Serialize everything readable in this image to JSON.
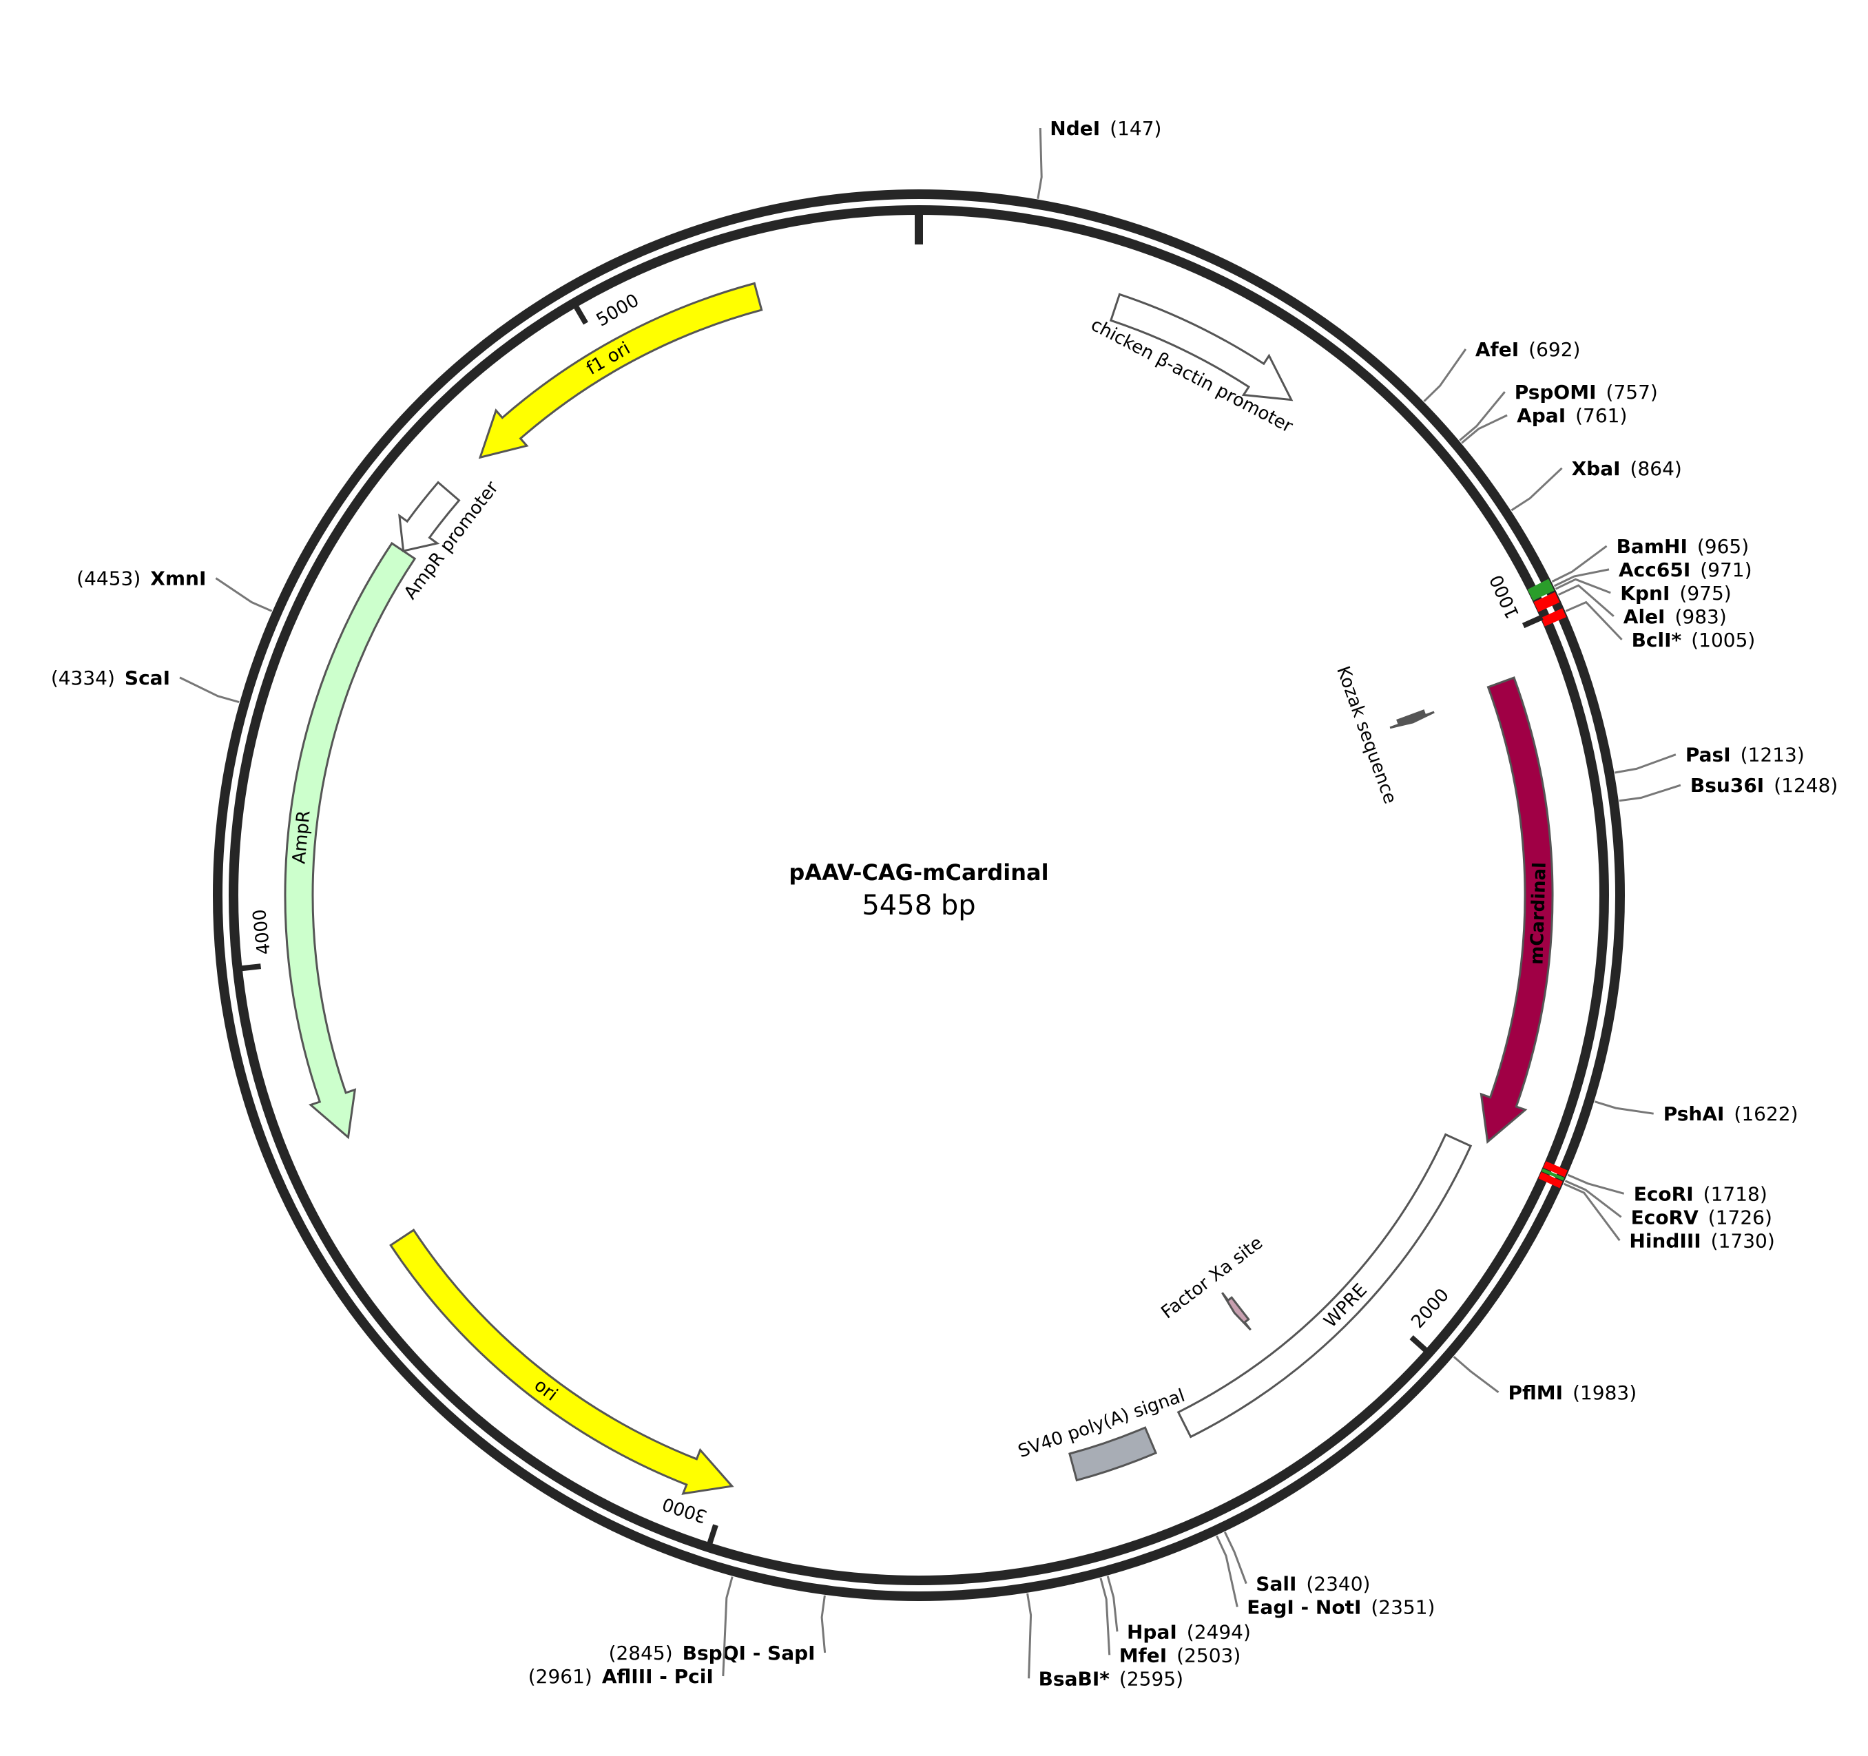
{
  "plasmid": {
    "name": "pAAV-CAG-mCardinal",
    "length_label": "5458 bp",
    "length": 5458
  },
  "backbone": {
    "color": "#262626",
    "ticks": [
      {
        "pos": 1000,
        "label": "1000"
      },
      {
        "pos": 2000,
        "label": "2000"
      },
      {
        "pos": 3000,
        "label": "3000"
      },
      {
        "pos": 4000,
        "label": "4000"
      },
      {
        "pos": 5000,
        "label": "5000"
      }
    ]
  },
  "features": [
    {
      "name": "chicken β-actin promoter",
      "start": 280,
      "end": 560,
      "direction": 1,
      "color": "#ffffff",
      "label_inside": false,
      "label_color": "#000000"
    },
    {
      "name": "Kozak sequence",
      "start": 1060,
      "end": 1072,
      "direction": 1,
      "color": "#555555",
      "label_inside": false,
      "label_color": "#000000"
    },
    {
      "name": "mCardinal",
      "start": 1060,
      "end": 1720,
      "direction": 1,
      "color": "#a00045",
      "label_inside": true,
      "label_color": "#ffffff"
    },
    {
      "name": "WPRE",
      "start": 1735,
      "end": 2325,
      "direction": 0,
      "color": "#ffffff",
      "label_inside": true,
      "label_color": "#000000"
    },
    {
      "name": "Factor Xa site",
      "start": 2155,
      "end": 2167,
      "direction": 1,
      "color": "#c8a0b0",
      "label_inside": false,
      "label_color": "#000000"
    },
    {
      "name": "SV40 poly(A) signal",
      "start": 2380,
      "end": 2500,
      "direction": 0,
      "color": "#a8adb5",
      "label_inside": false,
      "label_color": "#000000"
    },
    {
      "name": "ori",
      "start": 2995,
      "end": 3585,
      "direction": -1,
      "color": "#ffff00",
      "label_inside": true,
      "label_color": "#000000"
    },
    {
      "name": "AmpR",
      "start": 3745,
      "end": 4605,
      "direction": -1,
      "color": "#ccffcc",
      "label_inside": true,
      "label_color": "#000000"
    },
    {
      "name": "AmpR promoter",
      "start": 4605,
      "end": 4710,
      "direction": -1,
      "color": "#ffffff",
      "label_inside": false,
      "label_color": "#000000"
    },
    {
      "name": "f1 ori",
      "start": 4775,
      "end": 5230,
      "direction": -1,
      "color": "#ffff00",
      "label_inside": true,
      "label_color": "#000000"
    }
  ],
  "sites": [
    {
      "name": "NdeI",
      "pos_label": "(147)",
      "pos": 147,
      "side": "right"
    },
    {
      "name": "AfeI",
      "pos_label": "(692)",
      "pos": 692,
      "side": "right"
    },
    {
      "name": "PspOMI",
      "pos_label": "(757)",
      "pos": 757,
      "side": "right"
    },
    {
      "name": "ApaI",
      "pos_label": "(761)",
      "pos": 761,
      "side": "right"
    },
    {
      "name": "XbaI",
      "pos_label": "(864)",
      "pos": 864,
      "side": "right"
    },
    {
      "name": "BamHI",
      "pos_label": "(965)",
      "pos": 965,
      "side": "right"
    },
    {
      "name": "Acc65I",
      "pos_label": "(971)",
      "pos": 971,
      "side": "right"
    },
    {
      "name": "KpnI",
      "pos_label": "(975)",
      "pos": 975,
      "side": "right"
    },
    {
      "name": "AleI",
      "pos_label": "(983)",
      "pos": 983,
      "side": "right"
    },
    {
      "name": "BclI*",
      "pos_label": "(1005)",
      "pos": 1005,
      "side": "right"
    },
    {
      "name": "PasI",
      "pos_label": "(1213)",
      "pos": 1213,
      "side": "right"
    },
    {
      "name": "Bsu36I",
      "pos_label": "(1248)",
      "pos": 1248,
      "side": "right"
    },
    {
      "name": "PshAI",
      "pos_label": "(1622)",
      "pos": 1622,
      "side": "right"
    },
    {
      "name": "EcoRI",
      "pos_label": "(1718)",
      "pos": 1718,
      "side": "right"
    },
    {
      "name": "EcoRV",
      "pos_label": "(1726)",
      "pos": 1726,
      "side": "right"
    },
    {
      "name": "HindIII",
      "pos_label": "(1730)",
      "pos": 1730,
      "side": "right"
    },
    {
      "name": "PflMI",
      "pos_label": "(1983)",
      "pos": 1983,
      "side": "right"
    },
    {
      "name": "SalI",
      "pos_label": "(2340)",
      "pos": 2340,
      "side": "right"
    },
    {
      "name": "EagI - NotI",
      "pos_label": "(2351)",
      "pos": 2351,
      "side": "right"
    },
    {
      "name": "HpaI",
      "pos_label": "(2494)",
      "pos": 2494,
      "side": "right"
    },
    {
      "name": "MfeI",
      "pos_label": "(2503)",
      "pos": 2503,
      "side": "right"
    },
    {
      "name": "BsaBI*",
      "pos_label": "(2595)",
      "pos": 2595,
      "side": "right"
    },
    {
      "name": "BspQI - SapI",
      "pos_label": "(2845)",
      "pos": 2845,
      "side": "left"
    },
    {
      "name": "AflIII - PciI",
      "pos_label": "(2961)",
      "pos": 2961,
      "side": "left"
    },
    {
      "name": "ScaI",
      "pos_label": "(4334)",
      "pos": 4334,
      "side": "left"
    },
    {
      "name": "XmnI",
      "pos_label": "(4453)",
      "pos": 4453,
      "side": "left"
    }
  ],
  "highlight_marks": [
    {
      "start": 960,
      "end": 976,
      "color": "#2a9d2a"
    },
    {
      "start": 978,
      "end": 992,
      "color": "#ff0000"
    },
    {
      "start": 1000,
      "end": 1012,
      "color": "#ff0000"
    },
    {
      "start": 1713,
      "end": 1722,
      "color": "#ff0000"
    },
    {
      "start": 1723,
      "end": 1727,
      "color": "#2a9d2a"
    },
    {
      "start": 1728,
      "end": 1737,
      "color": "#ff0000"
    }
  ]
}
